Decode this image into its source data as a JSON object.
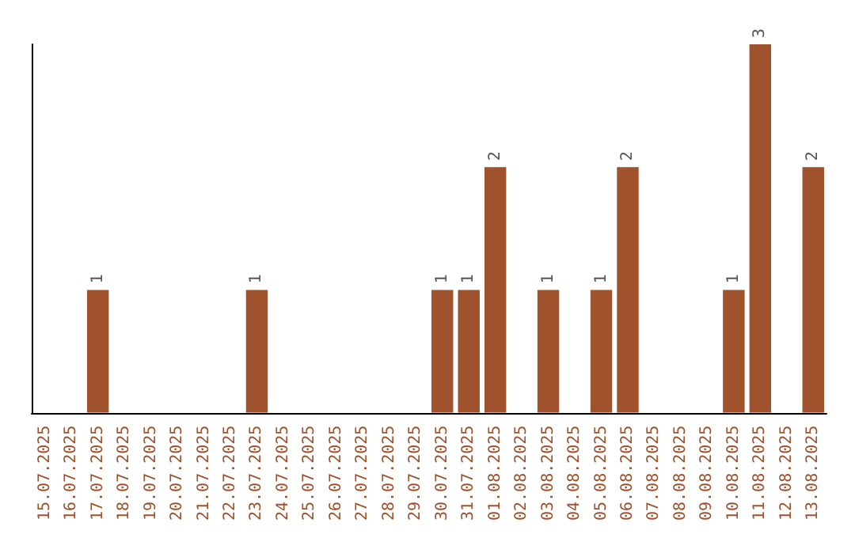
{
  "chart_data": {
    "type": "bar",
    "categories": [
      "15.07.2025",
      "16.07.2025",
      "17.07.2025",
      "18.07.2025",
      "19.07.2025",
      "20.07.2025",
      "21.07.2025",
      "22.07.2025",
      "23.07.2025",
      "24.07.2025",
      "25.07.2025",
      "26.07.2025",
      "27.07.2025",
      "28.07.2025",
      "29.07.2025",
      "30.07.2025",
      "31.07.2025",
      "01.08.2025",
      "02.08.2025",
      "03.08.2025",
      "04.08.2025",
      "05.08.2025",
      "06.08.2025",
      "07.08.2025",
      "08.08.2025",
      "09.08.2025",
      "10.08.2025",
      "11.08.2025",
      "12.08.2025",
      "13.08.2025"
    ],
    "values": [
      0,
      0,
      1,
      0,
      0,
      0,
      0,
      0,
      1,
      0,
      0,
      0,
      0,
      0,
      0,
      1,
      1,
      2,
      0,
      1,
      0,
      1,
      2,
      0,
      0,
      0,
      1,
      3,
      0,
      2
    ],
    "value_labels": [
      null,
      null,
      "1",
      null,
      null,
      null,
      null,
      null,
      "1",
      null,
      null,
      null,
      null,
      null,
      null,
      "1",
      "1",
      "2",
      null,
      "1",
      null,
      "1",
      "2",
      null,
      null,
      null,
      "1",
      "3",
      null,
      "2"
    ],
    "color": "#a0522d",
    "grid": false
  }
}
